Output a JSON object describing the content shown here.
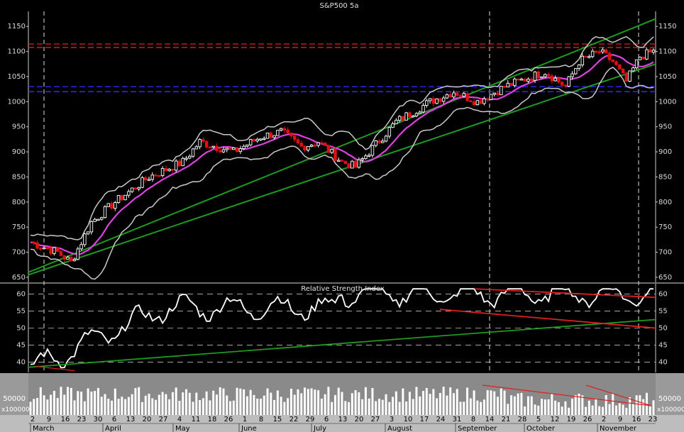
{
  "colors": {
    "background": "#000000",
    "axis_strip": "#bdbdbd",
    "up_candle": "#ffffff",
    "down_candle": "#e01010",
    "bollinger": "#c8c8c8",
    "moving_average": "#e040e0",
    "trendline": "#1e9a1e",
    "resistance": "#e02020",
    "support": "#3030ff",
    "rsi_line": "#ffffff",
    "volume_bars": "#ffffff",
    "volume_panel": "#8a8a8a",
    "grid": "#cfcfcf"
  },
  "chart_data": [
    {
      "type": "candlestick",
      "title": "S&P500 5a",
      "y_ticks": [
        650,
        700,
        750,
        800,
        850,
        900,
        950,
        1000,
        1050,
        1100,
        1150
      ],
      "ylim": [
        640,
        1180
      ],
      "support_levels": [
        1020,
        1030
      ],
      "resistance_levels": [
        1108,
        1115
      ],
      "overlays": [
        "bollinger-bands",
        "moving-average",
        "trendlines"
      ],
      "months": [
        "March",
        "April",
        "May",
        "June",
        "July",
        "August",
        "September",
        "October",
        "November"
      ],
      "day_ticks": [
        "2",
        "9",
        "16",
        "23",
        "30",
        "6",
        "13",
        "20",
        "27",
        "4",
        "11",
        "18",
        "26",
        "1",
        "8",
        "15",
        "22",
        "29",
        "6",
        "13",
        "20",
        "27",
        "3",
        "10",
        "17",
        "24",
        "31",
        "8",
        "14",
        "21",
        "28",
        "5",
        "12",
        "19",
        "26",
        "2",
        "9",
        "16",
        "23"
      ]
    },
    {
      "type": "line",
      "title": "Relative Strength Index",
      "y_ticks": [
        40,
        45,
        50,
        55,
        60
      ],
      "ylim": [
        37,
        63
      ]
    },
    {
      "type": "bar",
      "title": "",
      "y_ticks": [
        50000
      ],
      "unit_label": "x100000"
    }
  ]
}
